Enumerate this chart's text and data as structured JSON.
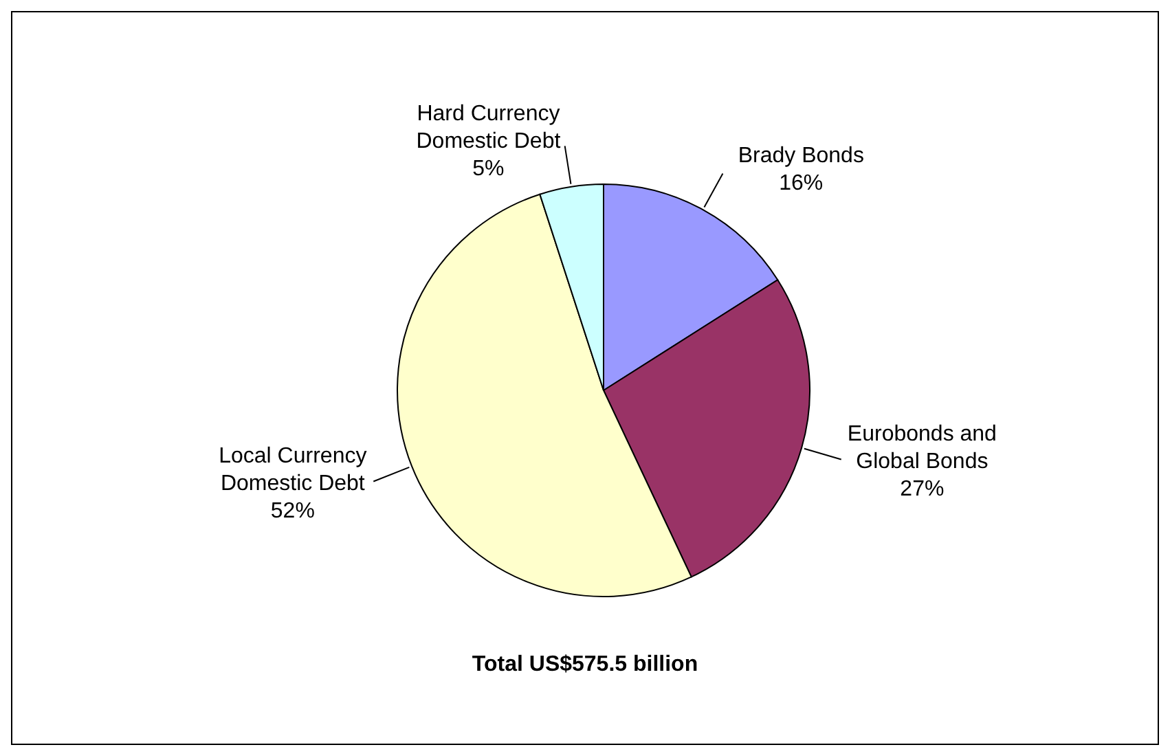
{
  "chart_data": {
    "type": "pie",
    "categories": [
      "Brady Bonds",
      "Eurobonds and Global Bonds",
      "Local Currency Domestic Debt",
      "Hard Currency Domestic Debt"
    ],
    "values": [
      16,
      27,
      52,
      5
    ],
    "colors": [
      "#9999ff",
      "#993366",
      "#ffffcc",
      "#ccffff"
    ],
    "value_labels": [
      "16%",
      "27%",
      "52%",
      "5%"
    ],
    "annotations": [
      "Total US$575.5 billion"
    ]
  }
}
